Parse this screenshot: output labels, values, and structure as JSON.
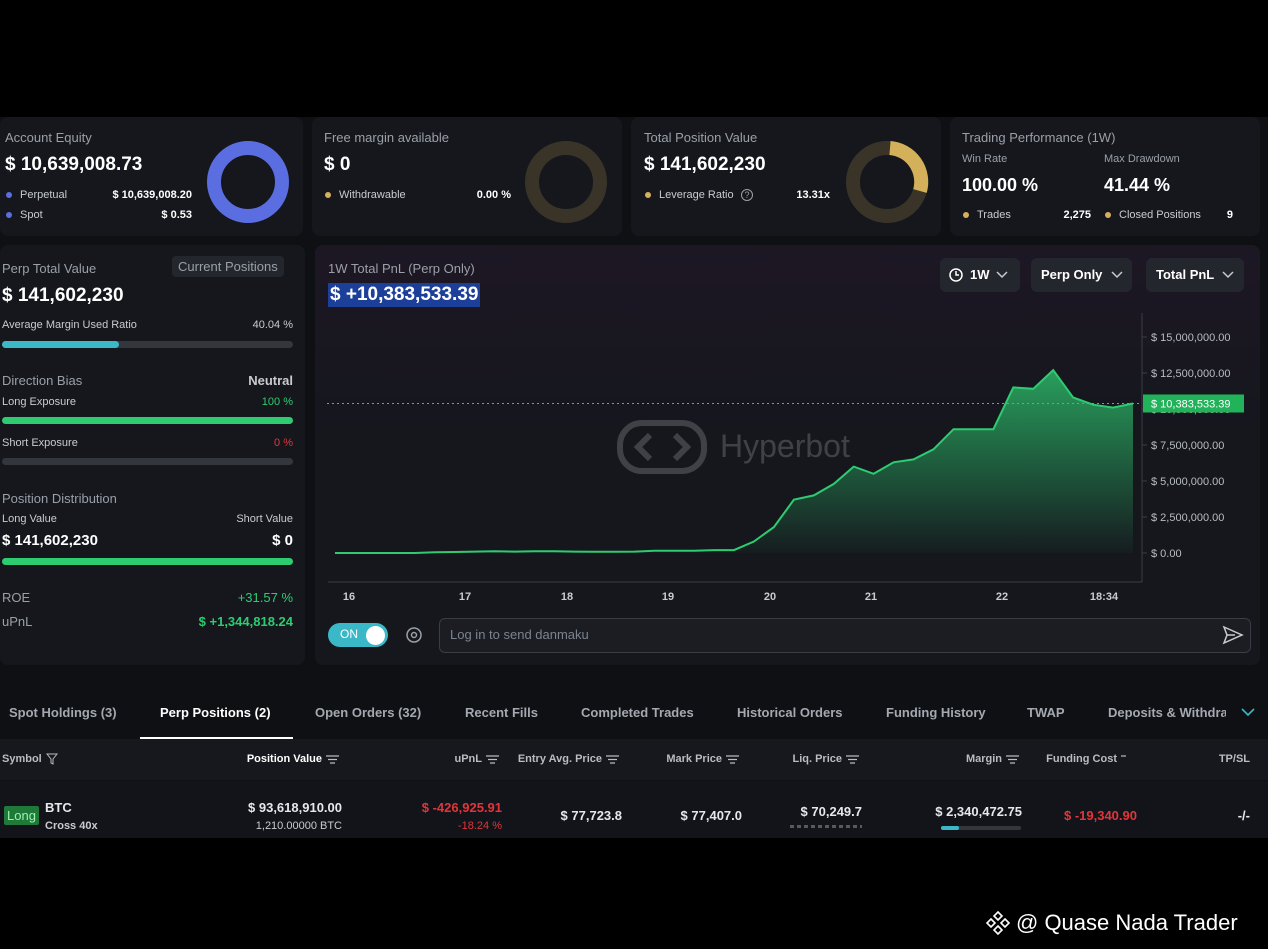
{
  "cards": [
    {
      "title": "Account Equity",
      "value": "$ 10,639,008.73",
      "rows": [
        {
          "label": "Perpetual",
          "value": "$ 10,639,008.20"
        },
        {
          "label": "Spot",
          "value": "$ 0.53"
        }
      ]
    },
    {
      "title": "Free margin available",
      "value": "$ 0",
      "rows": [
        {
          "label": "Withdrawable",
          "value": "0.00 %"
        }
      ]
    },
    {
      "title": "Total Position Value",
      "value": "$ 141,602,230",
      "rows": [
        {
          "label": "Leverage Ratio",
          "value": "13.31x"
        }
      ]
    },
    {
      "title": "Trading Performance (1W)",
      "stats": [
        {
          "label": "Win Rate",
          "value": "100.00 %"
        },
        {
          "label": "Max Drawdown",
          "value": "41.44 %"
        }
      ],
      "rows": [
        {
          "label": "Trades",
          "value": "2,275"
        },
        {
          "label": "Closed Positions",
          "value": "9"
        }
      ]
    }
  ],
  "perp_panel": {
    "title": "Perp Total Value",
    "button": "Current Positions",
    "value": "$ 141,602,230",
    "margin_label": "Average Margin Used Ratio",
    "margin_value": "40.04 %",
    "bias_title": "Direction Bias",
    "bias_value": "Neutral",
    "long_label": "Long Exposure",
    "long_value": "100 %",
    "short_label": "Short Exposure",
    "short_value": "0 %",
    "dist_title": "Position Distribution",
    "long_value_label": "Long Value",
    "short_value_label": "Short Value",
    "long_amount": "$ 141,602,230",
    "short_amount": "$ 0",
    "roe_label": "ROE",
    "roe_value": "+31.57 %",
    "upnl_label": "uPnL",
    "upnl_value": "$ +1,344,818.24"
  },
  "chart_data": {
    "type": "area",
    "title": "1W Total PnL (Perp Only)",
    "headline": "$ +10,383,533.39",
    "controls": [
      "1W",
      "Perp Only",
      "Total PnL"
    ],
    "watermark": "Hyperbot",
    "x_labels": [
      "16",
      "17",
      "18",
      "19",
      "20",
      "21",
      "22",
      "18:34"
    ],
    "ylim": [
      0,
      15000000
    ],
    "yticks": [
      {
        "value": 0,
        "label": "$ 0.00"
      },
      {
        "value": 2500000,
        "label": "$ 2,500,000.00"
      },
      {
        "value": 5000000,
        "label": "$ 5,000,000.00"
      },
      {
        "value": 7500000,
        "label": "$ 7,500,000.00"
      },
      {
        "value": 10000000,
        "label": "$ 10,000,000.00"
      },
      {
        "value": 12500000,
        "label": "$ 12,500,000.00"
      },
      {
        "value": 15000000,
        "label": "$ 15,000,000.00"
      }
    ],
    "series": [
      {
        "name": "Total PnL",
        "color": "#2ecc71",
        "values": [
          0,
          0,
          0,
          0,
          0,
          50000,
          70000,
          100000,
          120000,
          100000,
          120000,
          120000,
          100000,
          80000,
          80000,
          100000,
          150000,
          150000,
          150000,
          200000,
          200000,
          800000,
          1800000,
          3700000,
          4000000,
          4800000,
          6000000,
          5500000,
          6300000,
          6500000,
          7200000,
          8600000,
          8600000,
          8600000,
          11500000,
          11400000,
          12700000,
          10800000,
          10300000,
          10100000,
          10383533.39
        ]
      }
    ],
    "current": {
      "value": 10383533.39,
      "label": "$ 10,383,533.39"
    },
    "toggle": "ON",
    "input_placeholder": "Log in to send danmaku"
  },
  "tabs": [
    "Spot Holdings (3)",
    "Perp Positions (2)",
    "Open Orders (32)",
    "Recent Fills",
    "Completed Trades",
    "Historical Orders",
    "Funding History",
    "TWAP",
    "Deposits & Withdra"
  ],
  "table": {
    "columns": [
      "Symbol",
      "Position Value",
      "uPnL",
      "Entry Avg. Price",
      "Mark Price",
      "Liq. Price",
      "Margin",
      "Funding Cost",
      "TP/SL"
    ],
    "rows": [
      {
        "side": "Long",
        "symbol": "BTC",
        "mode": "Cross 40x",
        "position_value": "$ 93,618,910.00",
        "size": "1,210.00000 BTC",
        "upnl": "$ -426,925.91",
        "upnl_pct": "-18.24 %",
        "entry": "$ 77,723.8",
        "mark": "$ 77,407.0",
        "liq": "$ 70,249.7",
        "margin": "$ 2,340,472.75",
        "funding": "$ -19,340.90",
        "tpsl": "-/-"
      }
    ]
  },
  "footer": "@ Quase Nada Trader"
}
